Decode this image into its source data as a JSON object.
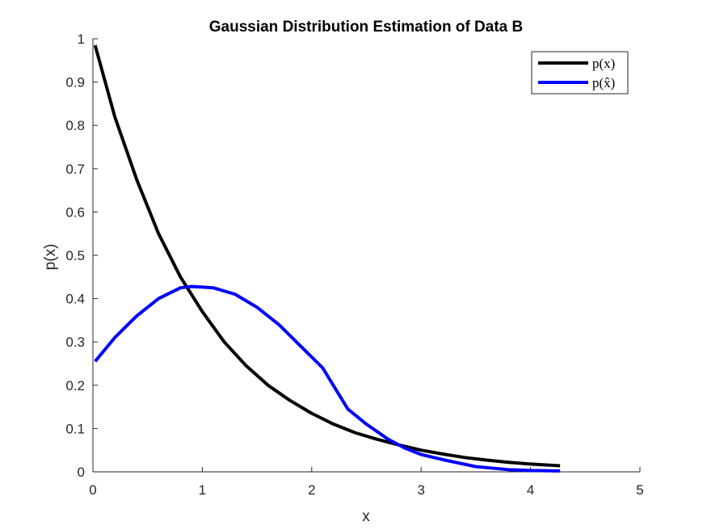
{
  "chart_data": {
    "type": "line",
    "title": "Gaussian Distribution Estimation of Data B",
    "xlabel": "x",
    "ylabel": "p(x)",
    "xlim": [
      0,
      5
    ],
    "ylim": [
      0,
      1
    ],
    "xticks": [
      0,
      1,
      2,
      3,
      4,
      5
    ],
    "xtick_labels": [
      "0",
      "1",
      "2",
      "3",
      "4",
      "5"
    ],
    "yticks": [
      0,
      0.1,
      0.2,
      0.3,
      0.4,
      0.5,
      0.6,
      0.7,
      0.8,
      0.9,
      1
    ],
    "ytick_labels": [
      "0",
      "0.1",
      "0.2",
      "0.3",
      "0.4",
      "0.5",
      "0.6",
      "0.7",
      "0.8",
      "0.9",
      "1"
    ],
    "grid": false,
    "legend_position": "top-right",
    "series": [
      {
        "name": "p(x)",
        "color": "#000000",
        "x": [
          0.02,
          0.2,
          0.4,
          0.6,
          0.8,
          1.0,
          1.2,
          1.4,
          1.6,
          1.8,
          2.0,
          2.2,
          2.4,
          2.6,
          2.8,
          3.0,
          3.2,
          3.4,
          3.6,
          3.8,
          4.0,
          4.27
        ],
        "y": [
          0.985,
          0.82,
          0.675,
          0.55,
          0.45,
          0.37,
          0.3,
          0.245,
          0.2,
          0.165,
          0.135,
          0.11,
          0.09,
          0.075,
          0.062,
          0.05,
          0.041,
          0.033,
          0.027,
          0.022,
          0.018,
          0.014
        ]
      },
      {
        "name": "p(x̂)",
        "color": "#0000FF",
        "x": [
          0.02,
          0.2,
          0.4,
          0.6,
          0.8,
          0.9,
          1.1,
          1.3,
          1.5,
          1.7,
          1.9,
          2.1,
          2.33,
          2.5,
          2.7,
          2.85,
          3.0,
          3.2,
          3.5,
          3.8,
          4.0,
          4.27
        ],
        "y": [
          0.255,
          0.31,
          0.36,
          0.4,
          0.425,
          0.428,
          0.425,
          0.41,
          0.38,
          0.34,
          0.29,
          0.24,
          0.145,
          0.11,
          0.075,
          0.055,
          0.04,
          0.028,
          0.012,
          0.005,
          0.003,
          0.002
        ]
      }
    ]
  }
}
